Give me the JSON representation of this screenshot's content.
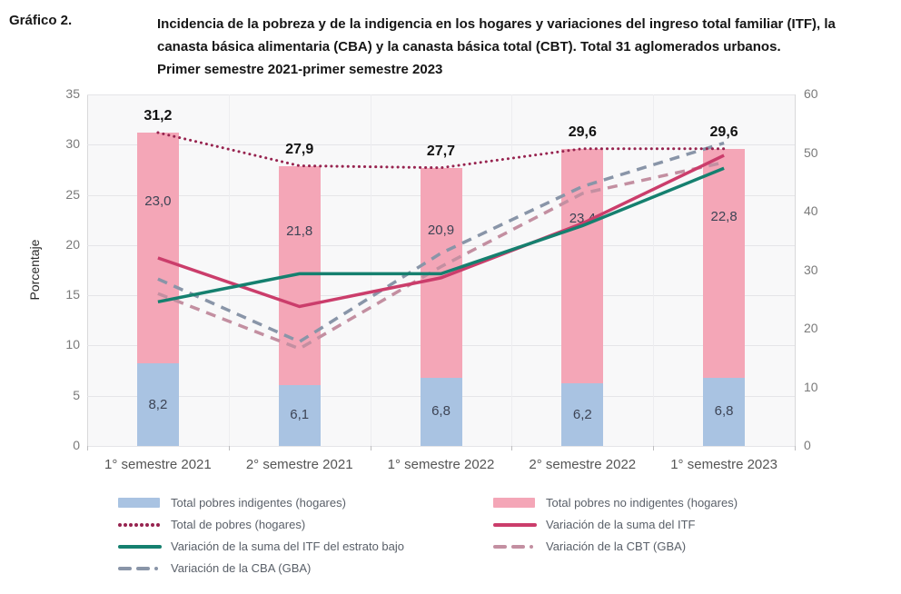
{
  "header": {
    "figure_label": "Gráfico 2.",
    "title_lines": [
      "Incidencia de la pobreza y de la indigencia en los hogares y variaciones del ingreso total familiar (ITF), la",
      "canasta básica alimentaria (CBA) y la canasta básica total (CBT). Total 31 aglomerados urbanos.",
      "Primer semestre 2021-primer semestre 2023"
    ]
  },
  "chart_data": {
    "type": "composite bar+line, stacked bars on left axis, variation lines on right axis",
    "categories": [
      "1° semestre 2021",
      "2° semestre 2021",
      "1° semestre 2022",
      "2° semestre 2022",
      "1° semestre 2023"
    ],
    "stacked_bars": [
      {
        "name": "Total pobres indigentes (hogares)",
        "color": "#a9c3e2",
        "labels": [
          "8,2",
          "6,1",
          "6,8",
          "6,2",
          "6,8"
        ],
        "values": [
          8.2,
          6.1,
          6.8,
          6.2,
          6.8
        ]
      },
      {
        "name": "Total pobres no indigentes (hogares)",
        "color": "#f4a6b7",
        "labels": [
          "23,0",
          "21,8",
          "20,9",
          "23,4",
          "22,8"
        ],
        "values": [
          23.0,
          21.8,
          20.9,
          23.4,
          22.8
        ]
      }
    ],
    "totals": {
      "name": "Total de pobres (hogares)",
      "labels": [
        "31,2",
        "27,9",
        "27,7",
        "29,6",
        "29,6"
      ],
      "values": [
        31.2,
        27.9,
        27.7,
        29.6,
        29.6
      ]
    },
    "lines": [
      {
        "name": "Variación de la CBA (GBA)",
        "axis": "right",
        "style": "dashed",
        "color": "#8995a8",
        "values": [
          28.5,
          17.8,
          32.9,
          44.3,
          51.7
        ]
      },
      {
        "name": "Variación de la CBT (GBA)",
        "axis": "right",
        "style": "dashed",
        "color": "#c38fa1",
        "values": [
          26.0,
          16.6,
          30.6,
          43.1,
          48.4
        ]
      },
      {
        "name": "Total de pobres (hogares)",
        "axis": "left",
        "style": "dotted",
        "color": "#97234f",
        "values": [
          31.2,
          27.9,
          27.7,
          29.6,
          29.6
        ]
      },
      {
        "name": "Variación de la suma del ITF",
        "axis": "right",
        "style": "solid",
        "color": "#cb3d6b",
        "values": [
          32.1,
          23.8,
          28.7,
          38.0,
          49.6
        ]
      },
      {
        "name": "Variación de la suma del ITF del estrato bajo",
        "axis": "right",
        "style": "solid",
        "color": "#15806f",
        "values": [
          24.6,
          29.4,
          29.4,
          37.6,
          47.4
        ]
      }
    ],
    "left_axis": {
      "label": "Porcentaje",
      "ticks": [
        0,
        5,
        10,
        15,
        20,
        25,
        30,
        35
      ],
      "max": 35
    },
    "right_axis": {
      "ticks": [
        0,
        10,
        20,
        30,
        40,
        50,
        60
      ],
      "max": 60
    },
    "grid": "horizontal light gray on near-white panel",
    "legend_position": "bottom, two columns"
  },
  "legend": {
    "columns": [
      [
        {
          "marker": "bar",
          "color": "#a9c3e2",
          "label": "Total pobres indigentes (hogares)"
        },
        {
          "marker": "dotted",
          "color": "#97234f",
          "label": "Total de pobres (hogares)"
        },
        {
          "marker": "solid",
          "color": "#15806f",
          "label": "Variación de la suma del ITF del estrato bajo"
        },
        {
          "marker": "dashed",
          "color": "#8995a8",
          "label": "Variación de la CBA (GBA)"
        }
      ],
      [
        {
          "marker": "bar",
          "color": "#f4a6b7",
          "label": "Total pobres no indigentes (hogares)"
        },
        {
          "marker": "solid",
          "color": "#cb3d6b",
          "label": "Variación de la suma del ITF"
        },
        {
          "marker": "dashed",
          "color": "#c38fa1",
          "label": "Variación de la CBT (GBA)"
        }
      ]
    ]
  }
}
